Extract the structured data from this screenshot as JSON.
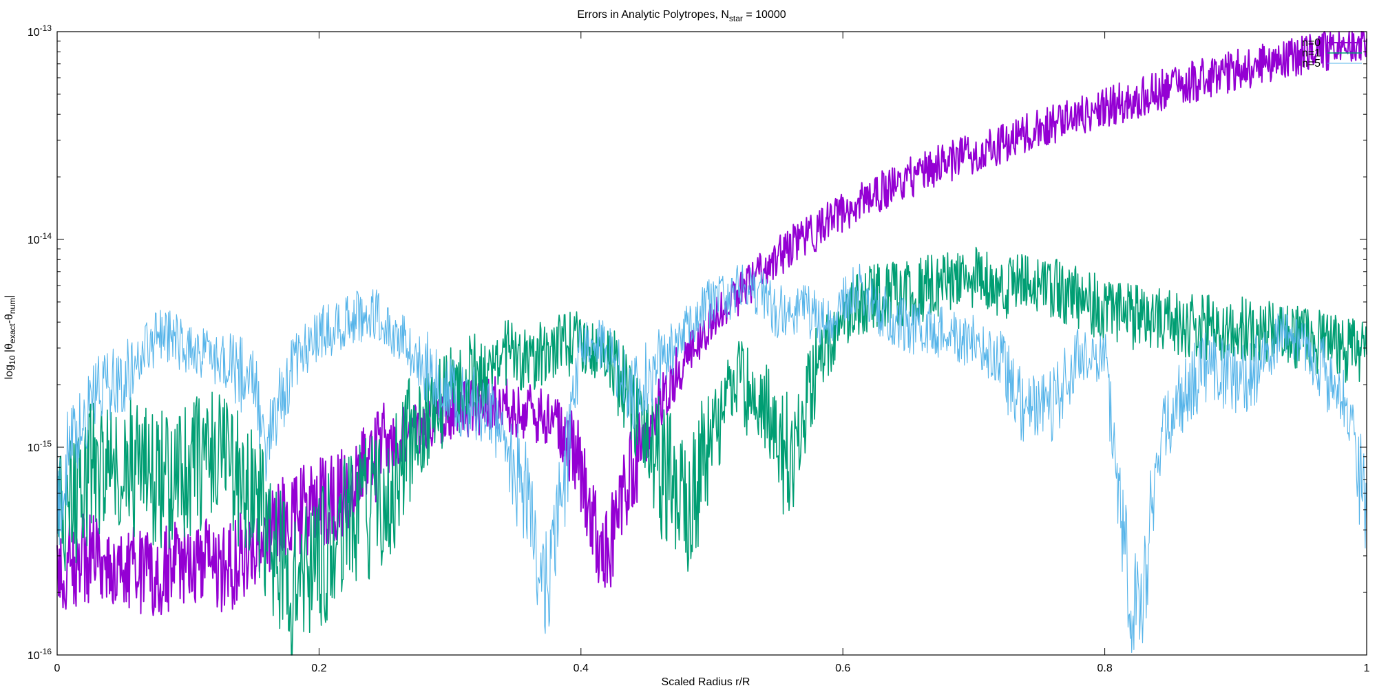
{
  "chart_data": {
    "type": "line",
    "title": {
      "base": "Errors in Analytic Polytropes, N",
      "sub": "star",
      "tail": " = 10000"
    },
    "xlabel": "Scaled Radius r/R",
    "ylabel": {
      "prefix": "log",
      "prefix_sub": "10",
      "mid": " |θ",
      "sub1": "exact",
      "dash": "-θ",
      "sub2": "num",
      "end": "|"
    },
    "xlim": [
      0,
      1
    ],
    "ylim": [
      1e-16,
      1e-13
    ],
    "yscale": "log",
    "grid": false,
    "legend_position": "top-right",
    "x_ticks": [
      {
        "value": 0,
        "label": "0"
      },
      {
        "value": 0.2,
        "label": "0.2"
      },
      {
        "value": 0.4,
        "label": "0.4"
      },
      {
        "value": 0.6,
        "label": "0.6"
      },
      {
        "value": 0.8,
        "label": "0.8"
      },
      {
        "value": 1,
        "label": "1"
      }
    ],
    "y_ticks": [
      {
        "exp": -16,
        "base": "10",
        "sup": "-16"
      },
      {
        "exp": -15,
        "base": "10",
        "sup": "-15"
      },
      {
        "exp": -14,
        "base": "10",
        "sup": "-14"
      },
      {
        "exp": -13,
        "base": "10",
        "sup": "-13"
      }
    ],
    "series": [
      {
        "name": "n=0",
        "color": "#9400d3",
        "stroke": 2,
        "noise": 0.1,
        "x": [
          0,
          0.02,
          0.05,
          0.08,
          0.1,
          0.13,
          0.16,
          0.19,
          0.22,
          0.25,
          0.28,
          0.3,
          0.33,
          0.36,
          0.38,
          0.4,
          0.41,
          0.42,
          0.43,
          0.44,
          0.46,
          0.48,
          0.5,
          0.52,
          0.54,
          0.56,
          0.58,
          0.6,
          0.63,
          0.66,
          0.7,
          0.75,
          0.8,
          0.85,
          0.9,
          0.95,
          1.0
        ],
        "y": [
          2.5e-16,
          3e-16,
          2.5e-16,
          2.5e-16,
          3e-16,
          2.5e-16,
          4e-16,
          5e-16,
          6e-16,
          1e-15,
          1.3e-15,
          1.5e-15,
          1.6e-15,
          1.5e-15,
          1.3e-15,
          8e-16,
          4e-16,
          3e-16,
          5e-16,
          8e-16,
          1.6e-15,
          2.7e-15,
          4e-15,
          5.4e-15,
          7.2e-15,
          9.2e-15,
          1.1e-14,
          1.35e-14,
          1.7e-14,
          2.1e-14,
          2.6e-14,
          3.4e-14,
          4.3e-14,
          5.4e-14,
          6.5e-14,
          7.7e-14,
          9e-14
        ]
      },
      {
        "name": "n=1",
        "color": "#009e73",
        "stroke": 1.6,
        "noise": 0.16,
        "x": [
          0,
          0.03,
          0.05,
          0.08,
          0.1,
          0.12,
          0.14,
          0.16,
          0.18,
          0.2,
          0.22,
          0.25,
          0.28,
          0.3,
          0.32,
          0.34,
          0.36,
          0.38,
          0.4,
          0.42,
          0.44,
          0.46,
          0.48,
          0.5,
          0.52,
          0.54,
          0.56,
          0.58,
          0.6,
          0.62,
          0.65,
          0.68,
          0.7,
          0.72,
          0.75,
          0.78,
          0.8,
          0.82,
          0.85,
          0.88,
          0.9,
          0.93,
          0.96,
          1.0
        ],
        "y": [
          4e-16,
          8e-16,
          9e-16,
          7e-16,
          8e-16,
          9e-16,
          7e-16,
          4e-16,
          2e-16,
          3e-16,
          4e-16,
          6e-16,
          1.3e-15,
          1.8e-15,
          2.2e-15,
          2.9e-15,
          2.6e-15,
          3e-15,
          3.2e-15,
          2.8e-15,
          1.6e-15,
          8e-16,
          5e-16,
          1.1e-15,
          2e-15,
          1.6e-15,
          8e-16,
          2.5e-15,
          4.2e-15,
          5.2e-15,
          5.5e-15,
          6.3e-15,
          6.4e-15,
          6e-15,
          5.9e-15,
          5.2e-15,
          4.6e-15,
          4.2e-15,
          4e-15,
          3.8e-15,
          3.7e-15,
          3.5e-15,
          3.2e-15,
          2.8e-15
        ]
      },
      {
        "name": "n=5",
        "color": "#56b4e9",
        "stroke": 1.1,
        "noise": 0.13,
        "x": [
          0,
          0.01,
          0.03,
          0.05,
          0.08,
          0.1,
          0.13,
          0.15,
          0.16,
          0.18,
          0.2,
          0.22,
          0.24,
          0.26,
          0.28,
          0.3,
          0.32,
          0.34,
          0.36,
          0.37,
          0.38,
          0.4,
          0.42,
          0.44,
          0.46,
          0.48,
          0.5,
          0.53,
          0.55,
          0.57,
          0.59,
          0.61,
          0.63,
          0.65,
          0.68,
          0.7,
          0.72,
          0.74,
          0.76,
          0.78,
          0.8,
          0.81,
          0.82,
          0.83,
          0.84,
          0.86,
          0.88,
          0.9,
          0.92,
          0.94,
          0.96,
          0.98,
          0.99,
          1.0
        ],
        "y": [
          6e-16,
          1e-15,
          1.8e-15,
          2.2e-15,
          3.6e-15,
          3e-15,
          2.5e-15,
          2e-15,
          1e-15,
          2.5e-15,
          3.5e-15,
          4e-15,
          4.5e-15,
          3.5e-15,
          2.5e-15,
          1.8e-15,
          1.6e-15,
          1.2e-15,
          5e-16,
          2e-16,
          3e-16,
          3.3e-15,
          3e-15,
          1.8e-15,
          2.5e-15,
          3.6e-15,
          5e-15,
          6.2e-15,
          4.5e-15,
          4.5e-15,
          4e-15,
          5.9e-15,
          4.5e-15,
          3.8e-15,
          3.5e-15,
          3.2e-15,
          2.5e-15,
          1.4e-15,
          1.6e-15,
          2.8e-15,
          2.5e-15,
          8e-16,
          1.5e-16,
          2e-16,
          1e-15,
          1.8e-15,
          2.6e-15,
          2e-15,
          2.6e-15,
          3.8e-15,
          2.6e-15,
          1.7e-15,
          1.2e-15,
          5e-16
        ]
      }
    ]
  }
}
